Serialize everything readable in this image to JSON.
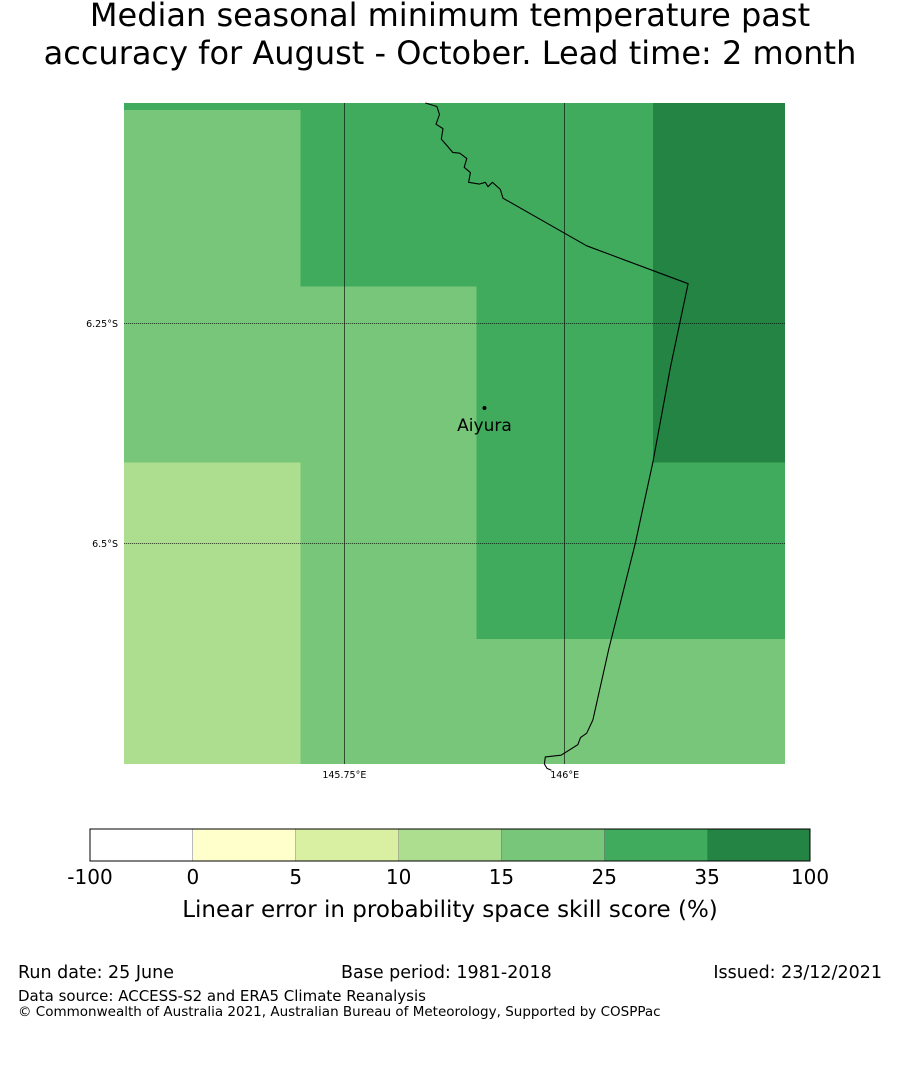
{
  "title": {
    "line1": "Median seasonal minimum temperature past",
    "line2": "accuracy for August - October. Lead time: 2 month"
  },
  "map": {
    "lon_range": [
      145.5,
      146.25
    ],
    "lat_range": [
      -6.75,
      -6.0
    ],
    "lon_ticks": [
      {
        "value": 145.75,
        "label": "145.75°E"
      },
      {
        "value": 146.0,
        "label": "146°E"
      }
    ],
    "lat_ticks": [
      {
        "value": -6.25,
        "label": "6.25°S"
      },
      {
        "value": -6.5,
        "label": "6.5°S"
      }
    ],
    "place": {
      "name": "Aiyura",
      "lon": 145.909,
      "lat": -6.346
    },
    "cells": [
      {
        "lon": [
          145.5,
          146.25
        ],
        "lat": [
          -6.0,
          -6.008
        ],
        "class": 5
      },
      {
        "lon": [
          145.5,
          145.7
        ],
        "lat": [
          -6.008,
          -6.208
        ],
        "class": 4
      },
      {
        "lon": [
          145.7,
          146.1
        ],
        "lat": [
          -6.008,
          -6.208
        ],
        "class": 5
      },
      {
        "lon": [
          146.1,
          146.25
        ],
        "lat": [
          -6.0,
          -6.408
        ],
        "class": 6
      },
      {
        "lon": [
          145.5,
          145.9
        ],
        "lat": [
          -6.208,
          -6.408
        ],
        "class": 4
      },
      {
        "lon": [
          145.9,
          146.1
        ],
        "lat": [
          -6.208,
          -6.408
        ],
        "class": 5
      },
      {
        "lon": [
          145.5,
          145.7
        ],
        "lat": [
          -6.408,
          -6.75
        ],
        "class": 3
      },
      {
        "lon": [
          145.7,
          145.9
        ],
        "lat": [
          -6.408,
          -6.75
        ],
        "class": 4
      },
      {
        "lon": [
          145.9,
          146.25
        ],
        "lat": [
          -6.408,
          -6.608
        ],
        "class": 5
      },
      {
        "lon": [
          145.9,
          146.25
        ],
        "lat": [
          -6.608,
          -6.75
        ],
        "class": 4
      }
    ],
    "coastline": [
      [
        145.842,
        -6.0
      ],
      [
        145.855,
        -6.004
      ],
      [
        145.858,
        -6.013
      ],
      [
        145.854,
        -6.024
      ],
      [
        145.862,
        -6.029
      ],
      [
        145.86,
        -6.041
      ],
      [
        145.868,
        -6.05
      ],
      [
        145.873,
        -6.056
      ],
      [
        145.881,
        -6.057
      ],
      [
        145.889,
        -6.063
      ],
      [
        145.886,
        -6.073
      ],
      [
        145.893,
        -6.079
      ],
      [
        145.891,
        -6.09
      ],
      [
        145.903,
        -6.092
      ],
      [
        145.91,
        -6.09
      ],
      [
        145.913,
        -6.095
      ],
      [
        145.918,
        -6.09
      ],
      [
        145.927,
        -6.098
      ],
      [
        145.93,
        -6.108
      ],
      [
        146.025,
        -6.162
      ],
      [
        146.14,
        -6.205
      ],
      [
        146.12,
        -6.3
      ],
      [
        146.1,
        -6.408
      ],
      [
        146.08,
        -6.5
      ],
      [
        146.05,
        -6.62
      ],
      [
        146.032,
        -6.7
      ],
      [
        146.025,
        -6.715
      ],
      [
        146.018,
        -6.72
      ],
      [
        146.015,
        -6.728
      ],
      [
        145.996,
        -6.74
      ],
      [
        145.978,
        -6.742
      ],
      [
        145.977,
        -6.75
      ],
      [
        145.98,
        -6.755
      ],
      [
        145.985,
        -6.757
      ]
    ],
    "legend": {
      "bounds": [
        "-100",
        "0",
        "5",
        "10",
        "15",
        "25",
        "35",
        "100"
      ],
      "colors": [
        "#ffffff",
        "#ffffcc",
        "#d9f0a3",
        "#addd8e",
        "#78c679",
        "#41ab5d",
        "#238443"
      ],
      "label": "Linear error in probability space skill score (%)"
    }
  },
  "footer": {
    "run_date": "Run date: 25 June",
    "base_period": "Base period: 1981-2018",
    "issued": "Issued: 23/12/2021",
    "data_source": "Data source: ACCESS-S2 and ERA5 Climate Reanalysis",
    "copyright": "© Commonwealth of Australia 2021, Australian Bureau of Meteorology, Supported by COSPPac"
  }
}
